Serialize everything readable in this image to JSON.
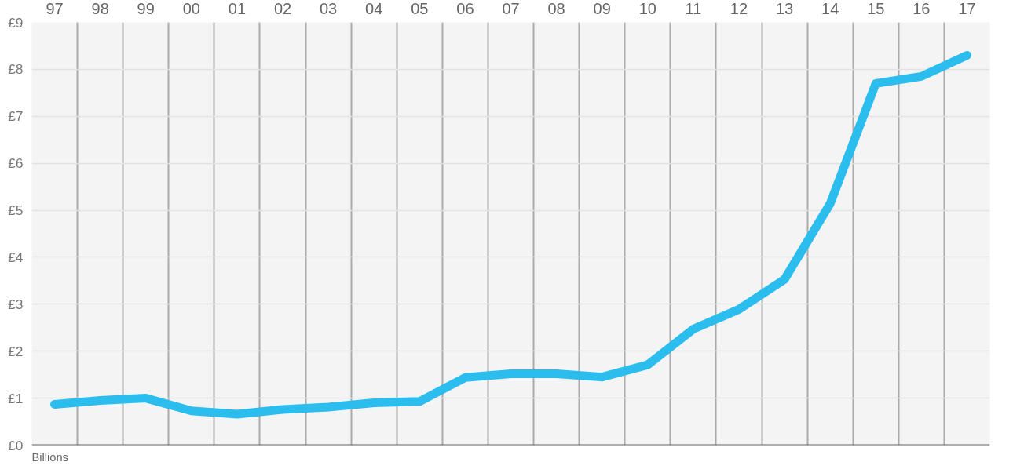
{
  "chart_data": {
    "type": "line",
    "categories": [
      "97",
      "98",
      "99",
      "00",
      "01",
      "02",
      "03",
      "04",
      "05",
      "06",
      "07",
      "08",
      "09",
      "10",
      "11",
      "12",
      "13",
      "14",
      "15",
      "16",
      "17"
    ],
    "series": [
      {
        "color": "#2bbdee",
        "values": [
          0.87,
          0.95,
          1.0,
          0.73,
          0.66,
          0.76,
          0.81,
          0.9,
          0.93,
          1.44,
          1.52,
          1.52,
          1.45,
          1.71,
          2.47,
          2.89,
          3.53,
          5.14,
          7.7,
          7.85,
          8.3
        ]
      }
    ],
    "ylim": [
      0,
      9
    ],
    "yticks": [
      {
        "value": 0,
        "label": "£0"
      },
      {
        "value": 1,
        "label": "£1"
      },
      {
        "value": 2,
        "label": "£2"
      },
      {
        "value": 3,
        "label": "£3"
      },
      {
        "value": 4,
        "label": "£4"
      },
      {
        "value": 5,
        "label": "£5"
      },
      {
        "value": 6,
        "label": "£6"
      },
      {
        "value": 7,
        "label": "£7"
      },
      {
        "value": 8,
        "label": "£8"
      },
      {
        "value": 9,
        "label": "£9"
      }
    ],
    "grid": true,
    "marker": "none",
    "line_style": "solid",
    "annotations": [
      "Billions"
    ]
  }
}
